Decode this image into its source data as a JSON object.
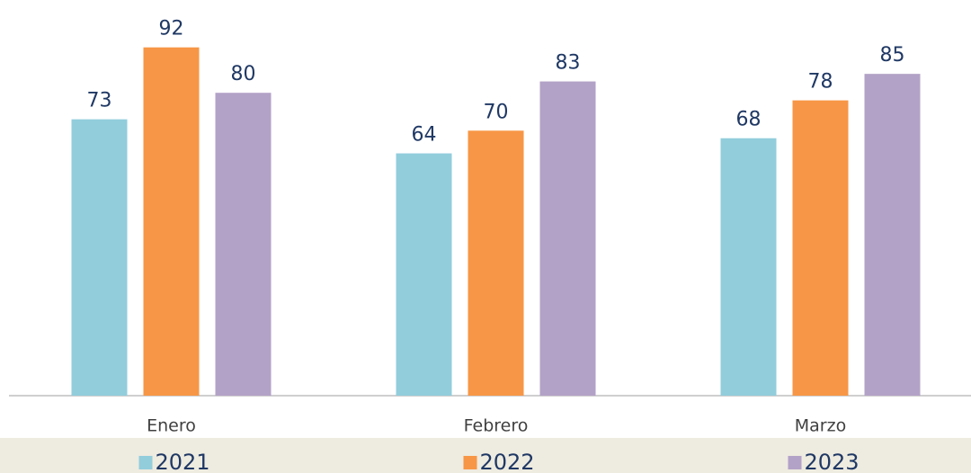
{
  "chart_data": {
    "type": "bar",
    "categories": [
      "Enero",
      "Febrero",
      "Marzo"
    ],
    "series": [
      {
        "name": "2021",
        "color": "#92cddc",
        "values": [
          73,
          64,
          68
        ]
      },
      {
        "name": "2022",
        "color": "#f79646",
        "values": [
          92,
          70,
          78
        ]
      },
      {
        "name": "2023",
        "color": "#b3a2c7",
        "values": [
          80,
          83,
          85
        ]
      }
    ],
    "ylim": [
      0,
      100
    ],
    "legend": "bottom"
  }
}
